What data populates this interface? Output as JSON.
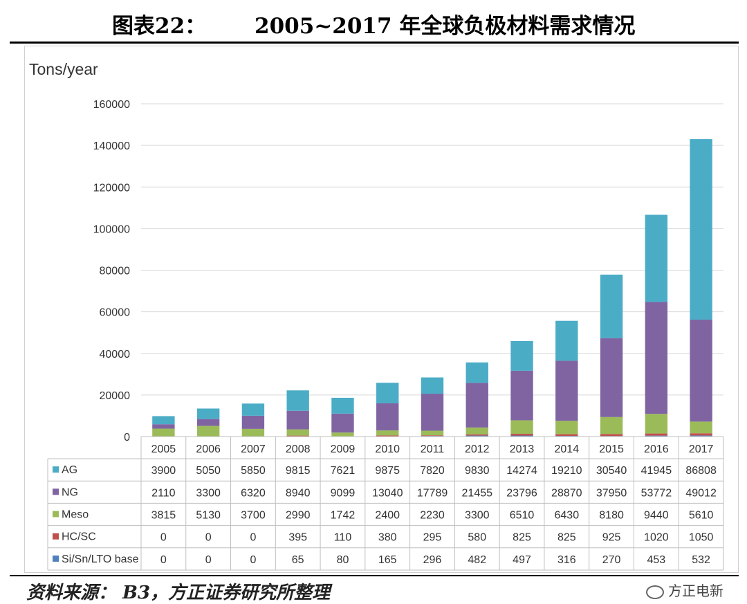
{
  "header": {
    "label": "图表22：",
    "title": "2005~2017 年全球负极材料需求情况"
  },
  "footer": {
    "source": "资料来源： B3，方正证券研究所整理",
    "watermark": "方正电新"
  },
  "colors": {
    "AG": "#4bacc6",
    "NG": "#8064a2",
    "Meso": "#9bbb59",
    "HC/SC": "#c0504d",
    "Si/Sn/LTO base": "#4f81bd"
  },
  "chart_data": {
    "type": "bar",
    "stacked": true,
    "title": "2005~2017 年全球负极材料需求情况",
    "ylabel": "Tons/year",
    "xlabel": "",
    "ylim": [
      0,
      160000
    ],
    "yticks": [
      0,
      20000,
      40000,
      60000,
      80000,
      100000,
      120000,
      140000,
      160000
    ],
    "categories": [
      "2005",
      "2006",
      "2007",
      "2008",
      "2009",
      "2010",
      "2011",
      "2012",
      "2013",
      "2014",
      "2015",
      "2016",
      "2017"
    ],
    "series": [
      {
        "name": "Si/Sn/LTO base",
        "values": [
          0,
          0,
          0,
          65,
          80,
          165,
          296,
          482,
          497,
          316,
          270,
          453,
          532
        ]
      },
      {
        "name": "HC/SC",
        "values": [
          0,
          0,
          0,
          395,
          110,
          380,
          295,
          580,
          825,
          825,
          925,
          1020,
          1050
        ]
      },
      {
        "name": "Meso",
        "values": [
          3815,
          5130,
          3700,
          2990,
          1742,
          2400,
          2230,
          3300,
          6510,
          6430,
          8180,
          9440,
          5610
        ]
      },
      {
        "name": "NG",
        "values": [
          2110,
          3300,
          6320,
          8940,
          9099,
          13040,
          17789,
          21455,
          23796,
          28870,
          37950,
          53772,
          49012
        ]
      },
      {
        "name": "AG",
        "values": [
          3900,
          5050,
          5850,
          9815,
          7621,
          9875,
          7820,
          9830,
          14274,
          19210,
          30540,
          41945,
          86808
        ]
      }
    ],
    "table_row_order": [
      "AG",
      "NG",
      "Meso",
      "HC/SC",
      "Si/Sn/LTO base"
    ],
    "legend": "data-table"
  }
}
